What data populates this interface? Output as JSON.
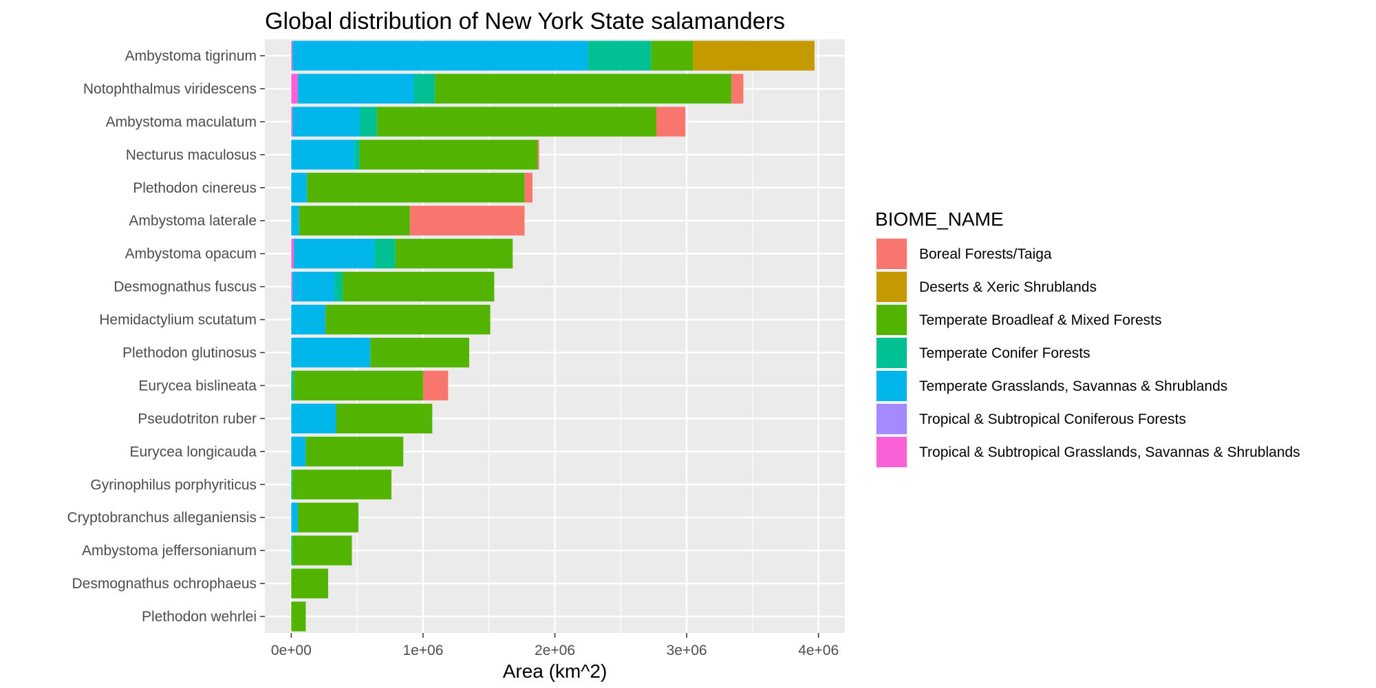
{
  "chart_data": {
    "type": "bar",
    "orientation": "horizontal",
    "stacked": true,
    "title": "Global distribution of New York State salamanders",
    "xlabel": "Area (km^2)",
    "ylabel": "",
    "xlim": [
      -200000,
      4200000
    ],
    "x_ticks": [
      0,
      1000000,
      2000000,
      3000000,
      4000000
    ],
    "x_tick_labels": [
      "0e+00",
      "1e+06",
      "2e+06",
      "3e+06",
      "4e+06"
    ],
    "grid": true,
    "background": "#ebebeb",
    "legend_position": "right",
    "legend_title": "BIOME_NAME",
    "categories": [
      "Ambystoma tigrinum",
      "Notophthalmus viridescens",
      "Ambystoma maculatum",
      "Necturus maculosus",
      "Plethodon cinereus",
      "Ambystoma laterale",
      "Ambystoma opacum",
      "Desmognathus fuscus",
      "Hemidactylium scutatum",
      "Plethodon glutinosus",
      "Eurycea bislineata",
      "Pseudotriton ruber",
      "Eurycea longicauda",
      "Gyrinophilus porphyriticus",
      "Cryptobranchus alleganiensis",
      "Ambystoma jeffersonianum",
      "Desmognathus ochrophaeus",
      "Plethodon wehrlei"
    ],
    "stack_order": [
      "Tropical & Subtropical Grasslands, Savannas & Shrublands",
      "Tropical & Subtropical Coniferous Forests",
      "Temperate Grasslands, Savannas & Shrublands",
      "Temperate Conifer Forests",
      "Temperate Broadleaf & Mixed Forests",
      "Deserts & Xeric Shrublands",
      "Boreal Forests/Taiga"
    ],
    "series": [
      {
        "name": "Boreal Forests/Taiga",
        "color": "#F8766D",
        "values": [
          0,
          90000,
          220000,
          10000,
          60000,
          870000,
          0,
          0,
          0,
          0,
          190000,
          0,
          0,
          0,
          0,
          0,
          0,
          0
        ]
      },
      {
        "name": "Deserts & Xeric Shrublands",
        "color": "#C49A00",
        "values": [
          920000,
          0,
          0,
          0,
          0,
          0,
          0,
          0,
          0,
          0,
          0,
          0,
          0,
          0,
          0,
          0,
          0,
          0
        ]
      },
      {
        "name": "Temperate Broadleaf & Mixed Forests",
        "color": "#53B400",
        "values": [
          320000,
          2250000,
          2120000,
          1350000,
          1650000,
          840000,
          890000,
          1150000,
          1250000,
          750000,
          980000,
          730000,
          740000,
          750000,
          460000,
          450000,
          280000,
          110000
        ]
      },
      {
        "name": "Temperate Conifer Forests",
        "color": "#00C094",
        "values": [
          480000,
          160000,
          130000,
          40000,
          0,
          0,
          160000,
          60000,
          0,
          0,
          20000,
          0,
          0,
          10000,
          0,
          10000,
          0,
          0
        ]
      },
      {
        "name": "Temperate Grasslands, Savannas & Shrublands",
        "color": "#00B6EB",
        "values": [
          2240000,
          880000,
          510000,
          480000,
          120000,
          60000,
          610000,
          320000,
          260000,
          600000,
          0,
          340000,
          110000,
          0,
          50000,
          0,
          0,
          0
        ]
      },
      {
        "name": "Tropical & Subtropical Coniferous Forests",
        "color": "#A58AFF",
        "values": [
          0,
          0,
          0,
          0,
          0,
          0,
          0,
          0,
          0,
          0,
          0,
          0,
          0,
          0,
          0,
          0,
          0,
          0
        ]
      },
      {
        "name": "Tropical & Subtropical Grasslands, Savannas & Shrublands",
        "color": "#FB61D7",
        "values": [
          10000,
          50000,
          10000,
          0,
          0,
          0,
          20000,
          10000,
          0,
          0,
          0,
          0,
          0,
          0,
          0,
          0,
          0,
          0
        ]
      }
    ]
  }
}
